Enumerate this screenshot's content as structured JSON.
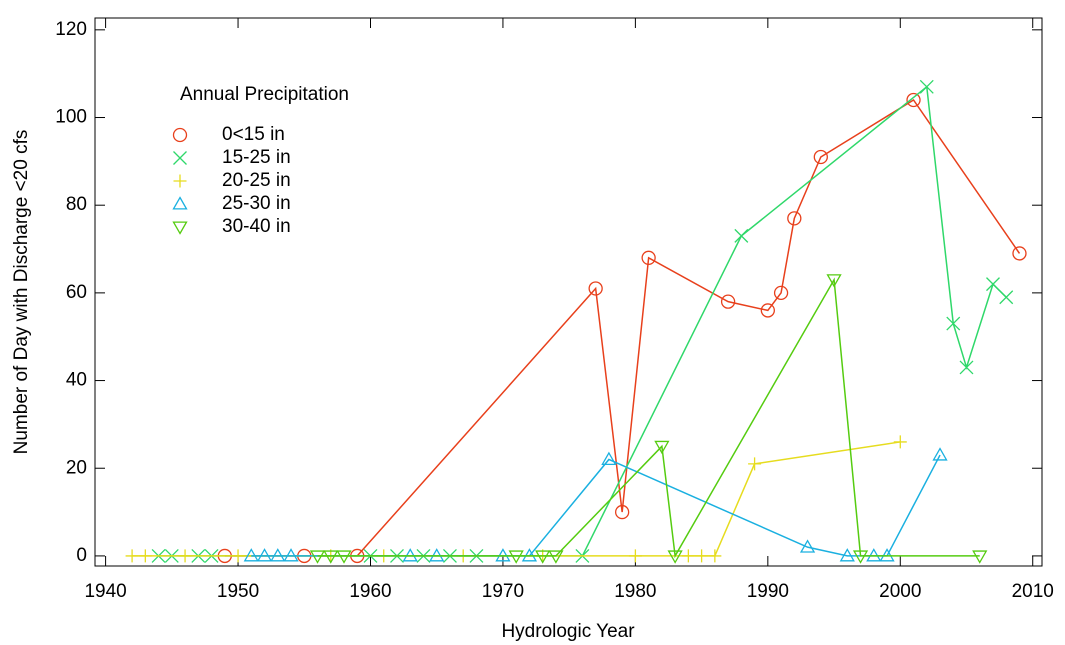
{
  "chart_data": {
    "type": "line",
    "x_label": "Hydrologic Year",
    "y_label": "Number of Day with Discharge <20 cfs",
    "legend_title": "Annual Precipitation",
    "legend": "upper left",
    "xlim": [
      1939.2,
      2010.7
    ],
    "xticks": [
      1940,
      1950,
      1960,
      1970,
      1980,
      1990,
      2000,
      2010
    ],
    "ylim": [
      -2.3,
      122.7
    ],
    "yticks": [
      0,
      20,
      40,
      60,
      80,
      100,
      120
    ],
    "series": [
      {
        "name": "0<15 in",
        "color": "#e8401c",
        "marker": "circle",
        "x": [
          1949,
          1955,
          1959,
          1977,
          1979,
          1981,
          1987,
          1990,
          1991,
          1992,
          1994,
          2001,
          2009
        ],
        "values": [
          0,
          0,
          0,
          61,
          10,
          68,
          58,
          56,
          60,
          77,
          91,
          104,
          69
        ]
      },
      {
        "name": "15-25 in",
        "color": "#2fd86a",
        "marker": "x",
        "x": [
          1944,
          1945,
          1947,
          1948,
          1960,
          1962,
          1964,
          1966,
          1968,
          1976,
          1988,
          2002,
          2004,
          2005,
          2007,
          2008
        ],
        "values": [
          0,
          0,
          0,
          0,
          0,
          0,
          0,
          0,
          0,
          0,
          73,
          107,
          53,
          43,
          62,
          59
        ]
      },
      {
        "name": "20-25 in",
        "color": "#e6dc1e",
        "marker": "plus",
        "x": [
          1942,
          1943,
          1946,
          1950,
          1957,
          1961,
          1967,
          1973,
          1980,
          1984,
          1985,
          1986,
          1989,
          2000
        ],
        "values": [
          0,
          0,
          0,
          0,
          0,
          0,
          0,
          0,
          0,
          0,
          0,
          0,
          21,
          26
        ]
      },
      {
        "name": "25-30 in",
        "color": "#1ab0e0",
        "marker": "triangle",
        "x": [
          1951,
          1952,
          1953,
          1954,
          1963,
          1965,
          1970,
          1972,
          1978,
          1993,
          1996,
          1998,
          1999,
          2003
        ],
        "values": [
          0,
          0,
          0,
          0,
          0,
          0,
          0,
          0,
          22,
          2,
          0,
          0,
          0,
          23
        ]
      },
      {
        "name": "30-40 in",
        "color": "#55cc10",
        "marker": "triangle-down",
        "x": [
          1956,
          1957,
          1958,
          1971,
          1973,
          1974,
          1982,
          1983,
          1995,
          1997,
          2006
        ],
        "values": [
          0,
          0,
          0,
          0,
          0,
          0,
          25,
          0,
          63,
          0,
          0
        ]
      }
    ]
  }
}
